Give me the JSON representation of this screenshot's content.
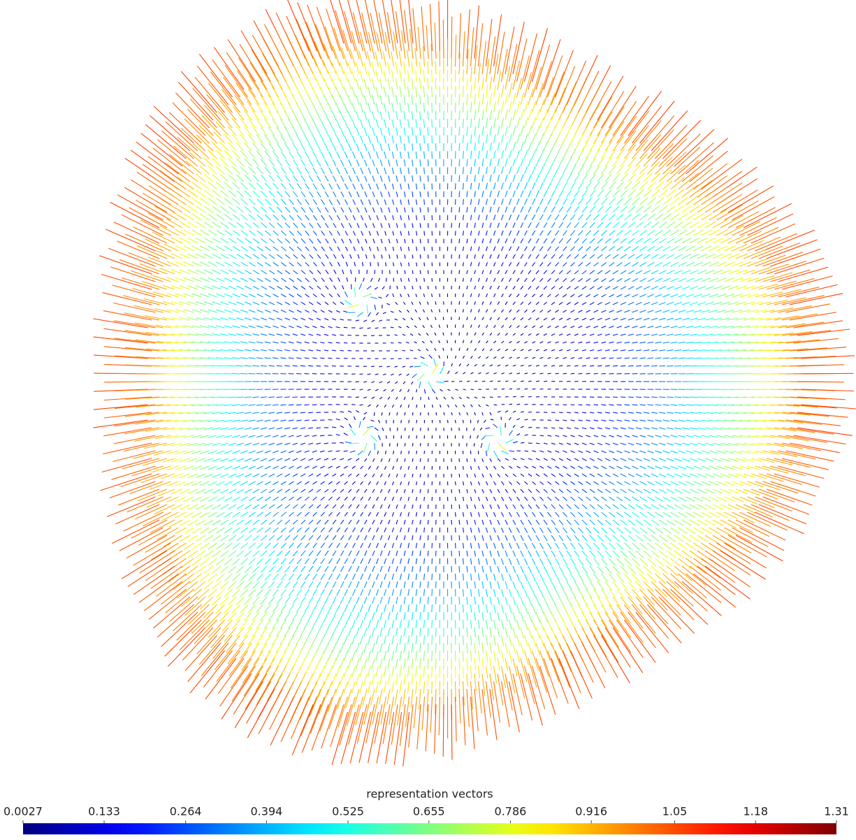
{
  "chart_data": {
    "type": "vector-field",
    "colorbar": {
      "title": "representation vectors",
      "colormap": "jet",
      "clim": [
        0.0027,
        1.31
      ],
      "ticks": [
        0.0027,
        0.133,
        0.264,
        0.394,
        0.525,
        0.655,
        0.786,
        0.916,
        1.05,
        1.18,
        1.31
      ]
    }
  }
}
